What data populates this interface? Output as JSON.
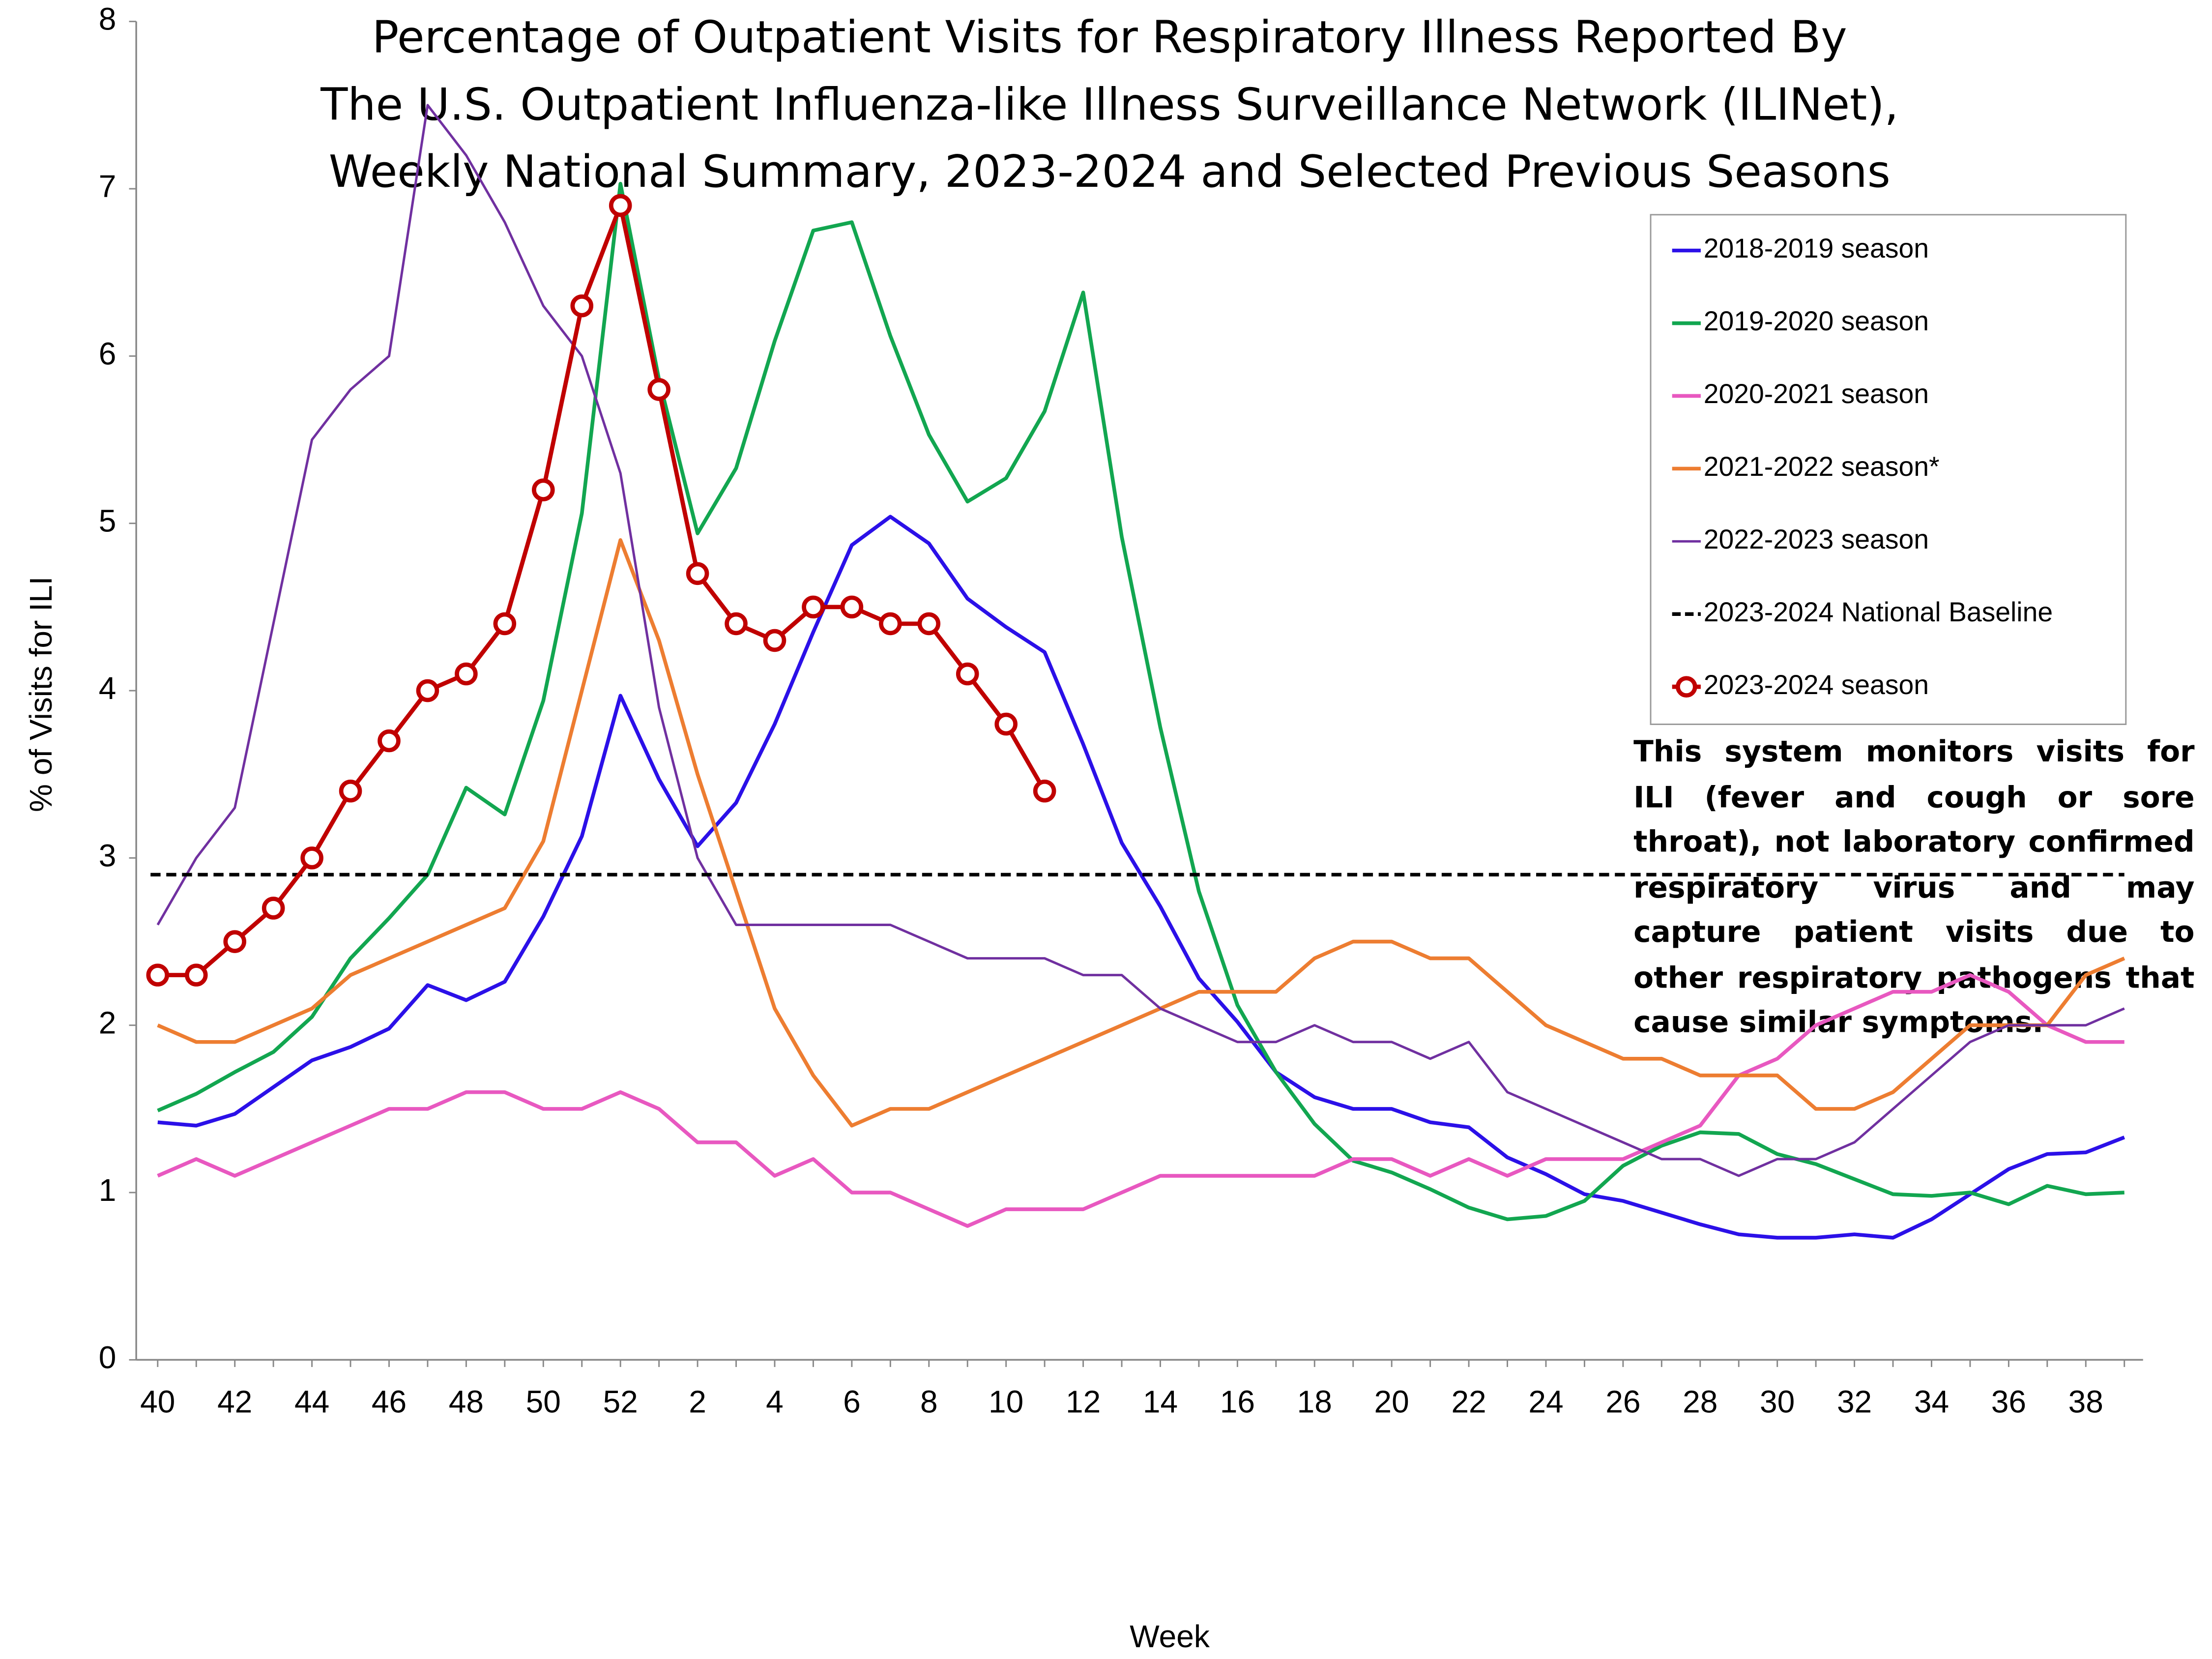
{
  "chart_data": {
    "type": "line",
    "title": [
      "Percentage of Outpatient Visits for Respiratory Illness Reported By",
      "The U.S. Outpatient Influenza-like Illness Surveillance Network (ILINet),",
      "Weekly National Summary, 2023-2024 and Selected Previous Seasons"
    ],
    "x_label": "Week",
    "y_label": "% of Visits for ILI",
    "categories": [
      "40",
      null,
      "42",
      null,
      "44",
      null,
      "46",
      null,
      "48",
      null,
      "50",
      null,
      "52",
      null,
      "2",
      null,
      "4",
      null,
      "6",
      null,
      "8",
      null,
      "10",
      null,
      "12",
      null,
      "14",
      null,
      "16",
      null,
      "18",
      null,
      "20",
      null,
      "22",
      null,
      "24",
      null,
      "26",
      null,
      "28",
      null,
      "30",
      null,
      "32",
      null,
      "34",
      null,
      "36",
      null,
      "38",
      null
    ],
    "ylim": [
      0,
      8
    ],
    "yticks": [
      0,
      1,
      2,
      3,
      4,
      5,
      6,
      7,
      8
    ],
    "series": [
      {
        "name": "2018-2019 season",
        "color": "#2b10e8",
        "values": [
          1.42,
          1.4,
          1.47,
          1.63,
          1.79,
          1.87,
          1.98,
          2.24,
          2.15,
          2.26,
          2.65,
          3.13,
          3.97,
          3.47,
          3.07,
          3.33,
          3.8,
          4.35,
          4.87,
          5.04,
          4.88,
          4.55,
          4.38,
          4.23,
          3.68,
          3.09,
          2.71,
          2.28,
          2.02,
          1.72,
          1.57,
          1.5,
          1.5,
          1.42,
          1.39,
          1.21,
          1.11,
          0.99,
          0.95,
          0.88,
          0.81,
          0.75,
          0.73,
          0.73,
          0.75,
          0.73,
          0.84,
          0.99,
          1.14,
          1.23,
          1.24,
          1.33
        ]
      },
      {
        "name": "2019-2020 season",
        "color": "#12a650",
        "values": [
          1.49,
          1.59,
          1.72,
          1.84,
          2.05,
          2.4,
          2.64,
          2.9,
          3.42,
          3.26,
          3.94,
          5.06,
          7.03,
          5.86,
          4.94,
          5.33,
          6.09,
          6.75,
          6.8,
          6.12,
          5.53,
          5.13,
          5.27,
          5.67,
          6.38,
          4.92,
          3.78,
          2.8,
          2.12,
          1.72,
          1.41,
          1.19,
          1.12,
          1.02,
          0.91,
          0.84,
          0.86,
          0.95,
          1.16,
          1.28,
          1.36,
          1.35,
          1.23,
          1.17,
          1.08,
          0.99,
          0.98,
          1.0,
          0.93,
          1.04,
          0.99,
          1.0
        ]
      },
      {
        "name": "2020-2021 season",
        "color": "#e858c0",
        "values": [
          1.1,
          1.2,
          1.1,
          1.2,
          1.3,
          1.4,
          1.5,
          1.5,
          1.6,
          1.6,
          1.5,
          1.5,
          1.6,
          1.5,
          1.3,
          1.3,
          1.1,
          1.2,
          1.0,
          1.0,
          0.9,
          0.8,
          0.9,
          0.9,
          0.9,
          1.0,
          1.1,
          1.1,
          1.1,
          1.1,
          1.1,
          1.2,
          1.2,
          1.1,
          1.2,
          1.1,
          1.2,
          1.2,
          1.2,
          1.3,
          1.4,
          1.7,
          1.8,
          2.0,
          2.1,
          2.2,
          2.2,
          2.3,
          2.2,
          2.0,
          1.9,
          1.9
        ]
      },
      {
        "name": "2021-2022 season*",
        "color": "#ed7d31",
        "values": [
          2.0,
          1.9,
          1.9,
          2.0,
          2.1,
          2.3,
          2.4,
          2.5,
          2.6,
          2.7,
          3.1,
          4.0,
          4.9,
          4.3,
          3.5,
          2.8,
          2.1,
          1.7,
          1.4,
          1.5,
          1.5,
          1.6,
          1.7,
          1.8,
          1.9,
          2.0,
          2.1,
          2.2,
          2.2,
          2.2,
          2.4,
          2.5,
          2.5,
          2.4,
          2.4,
          2.2,
          2.0,
          1.9,
          1.8,
          1.8,
          1.7,
          1.7,
          1.7,
          1.5,
          1.5,
          1.6,
          1.8,
          2.0,
          2.0,
          2.0,
          2.3,
          2.4
        ]
      },
      {
        "name": "2022-2023 season",
        "color": "#7030a0",
        "width": "thin",
        "values": [
          2.6,
          3.0,
          3.3,
          4.4,
          5.5,
          5.8,
          6.0,
          7.5,
          7.2,
          6.8,
          6.3,
          6.0,
          5.3,
          3.9,
          3.0,
          2.6,
          2.6,
          2.6,
          2.6,
          2.6,
          2.5,
          2.4,
          2.4,
          2.4,
          2.3,
          2.3,
          2.1,
          2.0,
          1.9,
          1.9,
          2.0,
          1.9,
          1.9,
          1.8,
          1.9,
          1.6,
          1.5,
          1.4,
          1.3,
          1.2,
          1.2,
          1.1,
          1.2,
          1.2,
          1.3,
          1.5,
          1.7,
          1.9,
          2.0,
          2.0,
          2.0,
          2.1
        ]
      },
      {
        "name": "2023-2024 National Baseline",
        "color": "#000000",
        "dashed": true,
        "value": 2.9
      },
      {
        "name": "2023-2024 season",
        "color": "#c00000",
        "marker": "circle",
        "width": "thick",
        "values": [
          2.3,
          2.3,
          2.5,
          2.7,
          3.0,
          3.4,
          3.7,
          4.0,
          4.1,
          4.4,
          5.2,
          6.3,
          6.9,
          5.8,
          4.7,
          4.4,
          4.3,
          4.5,
          4.5,
          4.4,
          4.4,
          4.1,
          3.8,
          3.4,
          null,
          null,
          null,
          null,
          null,
          null,
          null,
          null,
          null,
          null,
          null,
          null,
          null,
          null,
          null,
          null,
          null,
          null,
          null,
          null,
          null,
          null,
          null,
          null,
          null,
          null,
          null,
          null
        ]
      }
    ],
    "legend": "upper right",
    "annotation": "This system monitors visits for ILI (fever and cough or sore throat), not laboratory confirmed respiratory virus and may capture patient visits due to other respiratory pathogens that cause similar symptoms."
  }
}
